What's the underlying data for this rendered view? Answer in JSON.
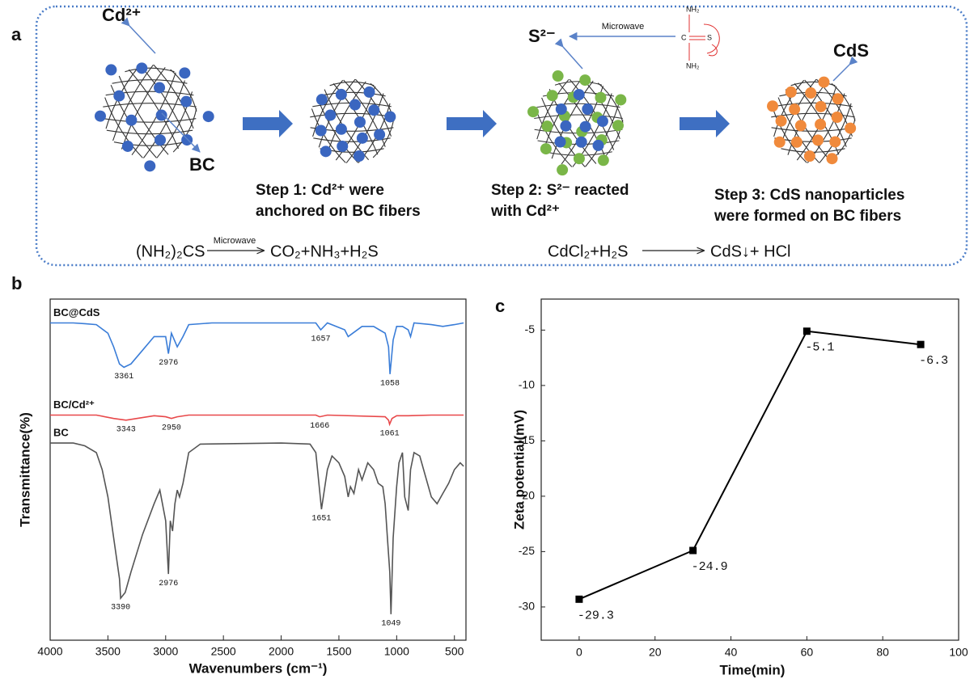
{
  "panel_a": {
    "label": "a",
    "cd_ion": "Cd²⁺",
    "bc": "BC",
    "s_ion": "S²⁻",
    "microwave": "Microwave",
    "thiourea": [
      "NH₂",
      "C",
      "S",
      "NH₂"
    ],
    "cds": "CdS",
    "steps": [
      [
        "Step 1: Cd²⁺ were",
        "anchored on BC fibers"
      ],
      [
        "Step 2: S²⁻ reacted",
        "with Cd²⁺"
      ],
      [
        "Step 3: CdS nanoparticles",
        "were formed on BC fibers"
      ]
    ],
    "equations": [
      {
        "reactant": "(NH₂)₂CS",
        "condition": "Microwave",
        "product": "CO₂+NH₃+H₂S"
      },
      {
        "reactant": "CdCl₂+H₂S",
        "product": "CdS↓+ HCl"
      }
    ]
  },
  "chart_data": [
    {
      "type": "spectra",
      "label": "b",
      "xlabel": "Wavenumbers (cm⁻¹)",
      "ylabel": "Transmittance(%)",
      "xlim": [
        4000,
        400
      ],
      "xticks": [
        4000,
        3500,
        3000,
        2500,
        2000,
        1500,
        1000,
        500
      ],
      "ylim": [
        0,
        100
      ],
      "series": [
        {
          "name": "BC@CdS",
          "color": "#3a7dd8",
          "x": [
            4000,
            3800,
            3700,
            3600,
            3500,
            3450,
            3400,
            3361,
            3300,
            3200,
            3100,
            3000,
            2976,
            2950,
            2900,
            2850,
            2800,
            2600,
            2000,
            1700,
            1657,
            1600,
            1450,
            1420,
            1380,
            1300,
            1200,
            1150,
            1100,
            1070,
            1058,
            1030,
            1000,
            950,
            900,
            880,
            850,
            700,
            600,
            500,
            420
          ],
          "values": [
            93,
            93,
            92.8,
            92.5,
            90,
            86,
            81,
            80,
            81,
            85,
            89,
            89,
            84,
            90,
            86,
            89,
            92.5,
            93,
            93,
            93,
            91,
            93,
            91,
            89,
            90,
            92,
            92,
            91,
            90,
            86,
            78,
            88,
            92,
            92,
            91,
            89,
            93,
            92.5,
            92,
            92.5,
            93
          ],
          "peaks": [
            3361,
            2976,
            1657,
            1058
          ]
        },
        {
          "name": "BC/Cd²⁺",
          "color": "#e8484a",
          "x": [
            4000,
            3600,
            3450,
            3343,
            3250,
            3100,
            3000,
            2950,
            2900,
            2800,
            2000,
            1700,
            1666,
            1600,
            1100,
            1070,
            1061,
            1040,
            1000,
            900,
            700,
            420
          ],
          "values": [
            66,
            66,
            65,
            64.5,
            65,
            65.8,
            65.5,
            65,
            65.5,
            66,
            66,
            66,
            65.5,
            66,
            65.5,
            64.5,
            63.3,
            65,
            65.8,
            65.8,
            66,
            66
          ],
          "peaks": [
            3343,
            2950,
            1666,
            1061
          ]
        },
        {
          "name": "BC",
          "color": "#555555",
          "x": [
            4000,
            3800,
            3700,
            3600,
            3550,
            3500,
            3450,
            3400,
            3390,
            3350,
            3300,
            3200,
            3100,
            3050,
            3000,
            2976,
            2960,
            2940,
            2920,
            2900,
            2880,
            2850,
            2800,
            2700,
            2000,
            1750,
            1700,
            1651,
            1600,
            1560,
            1500,
            1450,
            1420,
            1400,
            1370,
            1330,
            1300,
            1250,
            1200,
            1160,
            1120,
            1100,
            1080,
            1060,
            1049,
            1030,
            1000,
            980,
            950,
            930,
            900,
            880,
            850,
            800,
            750,
            700,
            650,
            600,
            550,
            500,
            450,
            420
          ],
          "values": [
            57.8,
            57.8,
            57,
            55,
            50,
            42,
            30,
            18,
            12.3,
            14,
            20,
            31,
            40,
            44,
            35,
            19.4,
            35,
            32,
            40,
            44,
            42,
            46,
            55,
            57.5,
            57.8,
            57.5,
            55,
            38.4,
            50,
            54,
            52,
            48,
            42,
            45,
            43,
            50,
            47,
            52,
            50,
            46,
            45,
            40,
            30,
            20,
            7.6,
            30,
            45,
            52,
            55,
            42,
            38,
            50,
            55,
            54,
            48,
            42,
            40,
            43,
            46,
            50,
            52,
            51
          ],
          "peaks": [
            3390,
            2976,
            1651,
            1049
          ]
        }
      ]
    },
    {
      "type": "line",
      "label": "c",
      "xlabel": "Time(min)",
      "ylabel": "Zeta potential(mV)",
      "x": [
        0,
        30,
        60,
        90
      ],
      "values": [
        -29.3,
        -24.9,
        -5.1,
        -6.3
      ],
      "color": "#000000",
      "xlim": [
        -10,
        100
      ],
      "xticks": [
        0,
        20,
        40,
        60,
        80,
        100
      ],
      "ylim": [
        -33,
        -2.2
      ],
      "yticks": [
        -30,
        -25,
        -20,
        -15,
        -10,
        -5
      ]
    }
  ]
}
